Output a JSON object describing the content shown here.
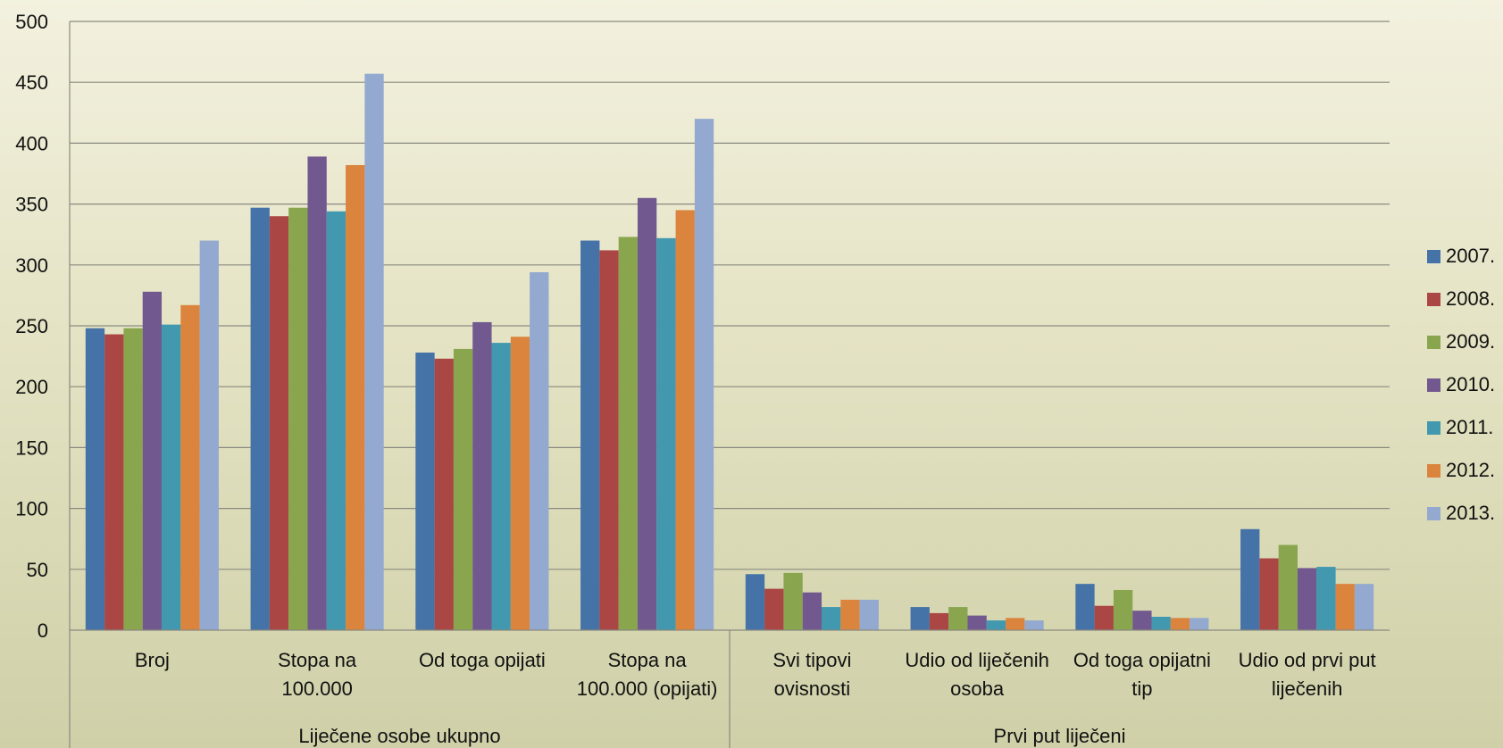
{
  "chart_data": {
    "type": "bar",
    "title": "",
    "xlabel": "",
    "ylabel": "",
    "ylim": [
      0,
      500
    ],
    "yticks": [
      "0",
      "50",
      "100",
      "150",
      "200",
      "250",
      "300",
      "350",
      "400",
      "450",
      "500"
    ],
    "grid": true,
    "legend_position": "right",
    "categories": [
      [
        "Broj"
      ],
      [
        "Stopa na",
        "100.000"
      ],
      [
        "Od toga opijati"
      ],
      [
        "Stopa na",
        "100.000 (opijati)"
      ],
      [
        "Svi tipovi",
        "ovisnosti"
      ],
      [
        "Udio od liječenih",
        "osoba"
      ],
      [
        "Od toga opijatni",
        "tip"
      ],
      [
        "Udio od prvi put",
        "liječenih"
      ]
    ],
    "groups": [
      {
        "label": "Liječene osobe ukupno",
        "categories": [
          0,
          1,
          2,
          3
        ]
      },
      {
        "label": "Prvi put liječeni",
        "categories": [
          4,
          5,
          6,
          7
        ]
      }
    ],
    "series": [
      {
        "name": "2007.",
        "color": "#4572a7",
        "values": [
          248,
          347,
          228,
          320,
          46,
          19,
          38,
          83
        ]
      },
      {
        "name": "2008.",
        "color": "#aa4643",
        "values": [
          243,
          340,
          223,
          312,
          34,
          14,
          20,
          59
        ]
      },
      {
        "name": "2009.",
        "color": "#89a54e",
        "values": [
          248,
          347,
          231,
          323,
          47,
          19,
          33,
          70
        ]
      },
      {
        "name": "2010.",
        "color": "#71588f",
        "values": [
          278,
          389,
          253,
          355,
          31,
          12,
          16,
          51
        ]
      },
      {
        "name": "2011.",
        "color": "#4198af",
        "values": [
          251,
          344,
          236,
          322,
          19,
          8,
          11,
          52
        ]
      },
      {
        "name": "2012.",
        "color": "#db843d",
        "values": [
          267,
          382,
          241,
          345,
          25,
          10,
          10,
          38
        ]
      },
      {
        "name": "2013.",
        "color": "#93a9cf",
        "values": [
          320,
          457,
          294,
          420,
          25,
          8,
          10,
          38
        ]
      }
    ]
  }
}
